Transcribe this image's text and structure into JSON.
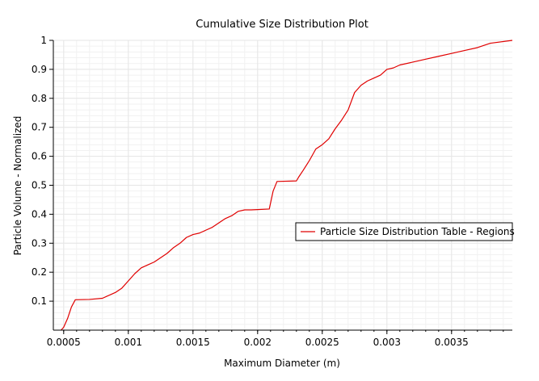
{
  "chart_data": {
    "type": "line",
    "title": "Cumulative Size Distribution Plot",
    "xlabel": "Maximum Diameter (m)",
    "ylabel": "Particle Volume - Normalized",
    "xlim": [
      0.00042,
      0.00397
    ],
    "ylim": [
      0.0,
      1.0
    ],
    "x_ticks": [
      0.0005,
      0.001,
      0.0015,
      0.002,
      0.0025,
      0.003,
      0.0035
    ],
    "x_tick_labels": [
      "0.0005",
      "0.001",
      "0.0015",
      "0.002",
      "0.0025",
      "0.003",
      "0.0035"
    ],
    "y_ticks": [
      0.1,
      0.2,
      0.3,
      0.4,
      0.5,
      0.6,
      0.7,
      0.8,
      0.9,
      1.0
    ],
    "y_tick_labels": [
      "0.1",
      "0.2",
      "0.3",
      "0.4",
      "0.5",
      "0.6",
      "0.7",
      "0.8",
      "0.9",
      "1"
    ],
    "grid": true,
    "legend_position": "right",
    "colors": {
      "series": "#e00000",
      "grid": "#e6e6e6",
      "axis": "#000000"
    },
    "series": [
      {
        "name": "Particle Size Distribution Table - Regions",
        "x": [
          0.00048,
          0.0005,
          0.00053,
          0.00056,
          0.00059,
          0.0007,
          0.0008,
          0.0009,
          0.00095,
          0.001,
          0.00105,
          0.0011,
          0.00115,
          0.0012,
          0.00125,
          0.0013,
          0.00135,
          0.0014,
          0.00145,
          0.0015,
          0.00155,
          0.0016,
          0.00165,
          0.0017,
          0.00175,
          0.0018,
          0.00185,
          0.0019,
          0.00195,
          0.002,
          0.00209,
          0.00212,
          0.00215,
          0.0023,
          0.00232,
          0.00235,
          0.0024,
          0.00245,
          0.0025,
          0.00255,
          0.0026,
          0.00265,
          0.0027,
          0.00275,
          0.0028,
          0.00285,
          0.0029,
          0.00295,
          0.003,
          0.00305,
          0.0031,
          0.0032,
          0.0033,
          0.0034,
          0.0035,
          0.0036,
          0.0037,
          0.0038,
          0.00397
        ],
        "y": [
          0.0,
          0.01,
          0.04,
          0.08,
          0.105,
          0.106,
          0.11,
          0.13,
          0.145,
          0.17,
          0.195,
          0.215,
          0.225,
          0.235,
          0.25,
          0.265,
          0.285,
          0.3,
          0.32,
          0.33,
          0.335,
          0.345,
          0.355,
          0.37,
          0.385,
          0.395,
          0.41,
          0.415,
          0.415,
          0.416,
          0.418,
          0.48,
          0.513,
          0.515,
          0.53,
          0.55,
          0.585,
          0.625,
          0.64,
          0.66,
          0.695,
          0.725,
          0.76,
          0.82,
          0.845,
          0.86,
          0.87,
          0.88,
          0.9,
          0.905,
          0.915,
          0.925,
          0.935,
          0.945,
          0.955,
          0.965,
          0.975,
          0.99,
          1.0
        ]
      }
    ]
  }
}
